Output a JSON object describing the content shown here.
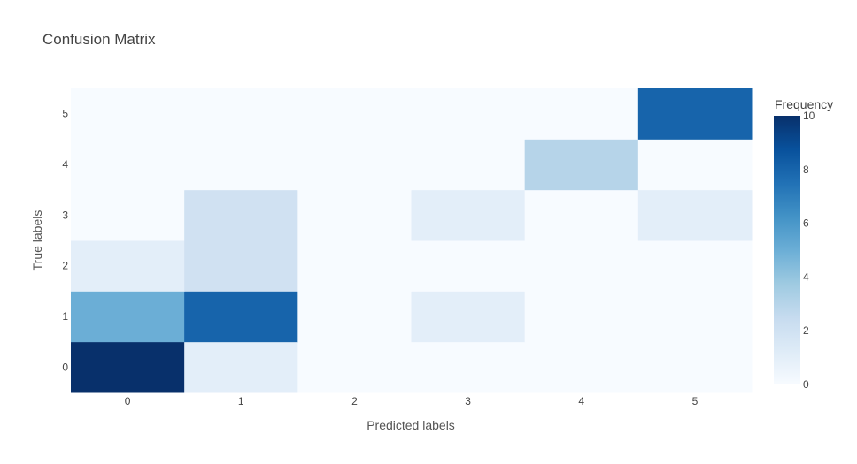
{
  "chart_data": {
    "type": "heatmap",
    "title": "Confusion Matrix",
    "xlabel": "Predicted labels",
    "ylabel": "True labels",
    "x": [
      "0",
      "1",
      "2",
      "3",
      "4",
      "5"
    ],
    "y": [
      "0",
      "1",
      "2",
      "3",
      "4",
      "5"
    ],
    "z": [
      [
        10,
        1,
        0,
        0,
        0,
        0
      ],
      [
        5,
        8,
        0,
        1,
        0,
        0
      ],
      [
        1,
        2,
        0,
        0,
        0,
        0
      ],
      [
        0,
        2,
        0,
        1,
        0,
        1
      ],
      [
        0,
        0,
        0,
        0,
        3,
        0
      ],
      [
        0,
        0,
        0,
        0,
        0,
        8
      ]
    ],
    "zmin": 0,
    "zmax": 10,
    "colorscale": "Blues",
    "colors": {
      "low": "#f7fbff",
      "high": "#08306b"
    },
    "colorbar": {
      "title": "Frequency",
      "ticks": [
        "0",
        "2",
        "4",
        "6",
        "8",
        "10"
      ]
    }
  }
}
